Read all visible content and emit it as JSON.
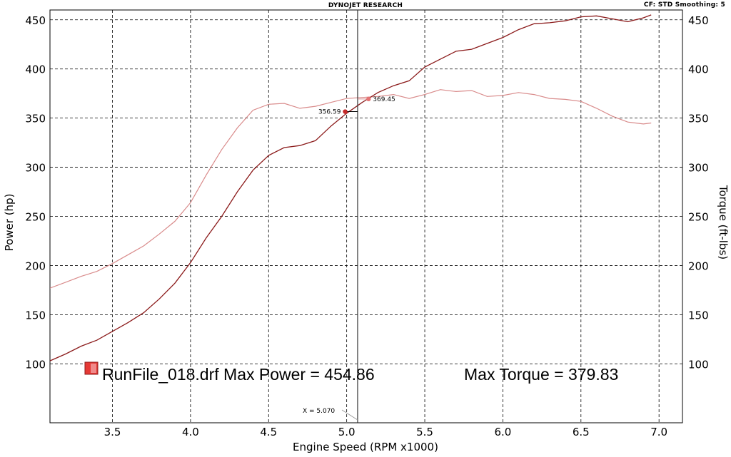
{
  "header": {
    "title": "DYNOJET RESEARCH",
    "settings": "CF: STD  Smoothing: 5"
  },
  "colors": {
    "power": "#8b1a1a",
    "torque": "#d98b8b",
    "marker_power": "#c62828",
    "marker_torque": "#e57373",
    "grid": "#000000",
    "cursor": "#333333",
    "legend_swatch": "#e53935"
  },
  "chart_data": {
    "type": "line",
    "title": "DYNOJET RESEARCH",
    "xlabel": "Engine Speed (RPM x1000)",
    "ylabel": "Power (hp)",
    "y2label": "Torque (ft-lbs)",
    "xlim": [
      3.1,
      7.15
    ],
    "ylim": [
      40,
      460
    ],
    "x_ticks": [
      "3.5",
      "4.0",
      "4.5",
      "5.0",
      "5.5",
      "6.0",
      "6.5",
      "7.0"
    ],
    "x_tick_values": [
      3.5,
      4.0,
      4.5,
      5.0,
      5.5,
      6.0,
      6.5,
      7.0
    ],
    "y_ticks": [
      "100",
      "150",
      "200",
      "250",
      "300",
      "350",
      "400",
      "450"
    ],
    "y_tick_values": [
      100,
      150,
      200,
      250,
      300,
      350,
      400,
      450
    ],
    "grid": true,
    "series": [
      {
        "id": "power",
        "x": [
          3.1,
          3.2,
          3.3,
          3.4,
          3.5,
          3.6,
          3.7,
          3.8,
          3.9,
          4.0,
          4.1,
          4.2,
          4.3,
          4.4,
          4.5,
          4.6,
          4.7,
          4.8,
          4.9,
          5.0,
          5.1,
          5.2,
          5.3,
          5.4,
          5.5,
          5.6,
          5.7,
          5.8,
          5.9,
          6.0,
          6.1,
          6.2,
          6.3,
          6.4,
          6.5,
          6.6,
          6.7,
          6.8,
          6.9,
          6.95
        ],
        "values": [
          103,
          110,
          118,
          124,
          133,
          142,
          152,
          166,
          182,
          203,
          228,
          250,
          275,
          297,
          312,
          320,
          322,
          327,
          342,
          355,
          366,
          376,
          383,
          388,
          402,
          410,
          418,
          420,
          426,
          432,
          440,
          446,
          447,
          449,
          453,
          454,
          451,
          448,
          452,
          455
        ]
      },
      {
        "id": "torque",
        "x": [
          3.1,
          3.2,
          3.3,
          3.4,
          3.5,
          3.6,
          3.7,
          3.8,
          3.9,
          4.0,
          4.1,
          4.2,
          4.3,
          4.4,
          4.5,
          4.6,
          4.7,
          4.8,
          4.9,
          5.0,
          5.1,
          5.2,
          5.3,
          5.4,
          5.5,
          5.6,
          5.7,
          5.8,
          5.9,
          6.0,
          6.1,
          6.2,
          6.3,
          6.4,
          6.5,
          6.6,
          6.7,
          6.8,
          6.9,
          6.95
        ],
        "values": [
          177,
          183,
          189,
          194,
          202,
          211,
          220,
          232,
          245,
          264,
          292,
          318,
          340,
          358,
          364,
          365,
          360,
          362,
          366,
          370,
          371,
          372,
          374,
          370,
          374,
          379,
          377,
          378,
          372,
          373,
          376,
          374,
          370,
          369,
          367,
          360,
          352,
          346,
          344,
          345
        ]
      }
    ],
    "cursor": {
      "x": 5.07,
      "label": "X = 5.070",
      "power_readout": "356.59",
      "torque_readout": "369.45",
      "power_value": 356.59,
      "torque_value": 369.45,
      "power_marker_x": 4.99,
      "torque_marker_x": 5.14
    },
    "legend": {
      "text": "RunFile_018.drf Max Power = 454.86",
      "text2": "Max Torque = 379.83",
      "max_power": 454.86,
      "max_torque": 379.83
    }
  }
}
